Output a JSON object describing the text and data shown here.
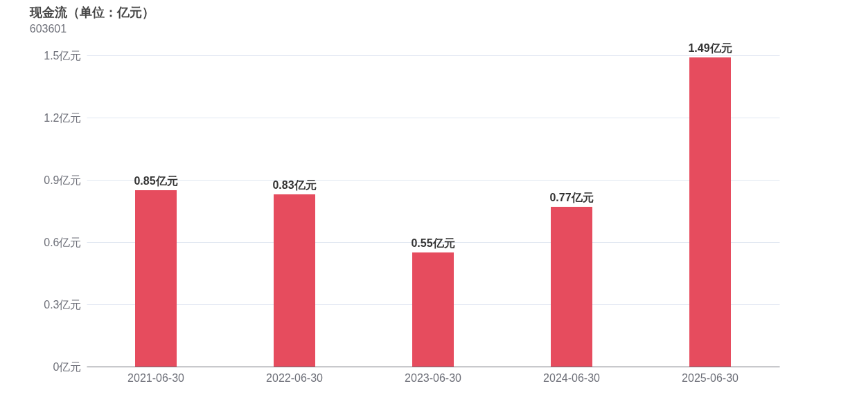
{
  "chart_data": {
    "type": "bar",
    "title": "现金流（单位：亿元）",
    "subtitle": "603601",
    "categories": [
      "2021-06-30",
      "2022-06-30",
      "2023-06-30",
      "2024-06-30",
      "2025-06-30"
    ],
    "values": [
      0.85,
      0.83,
      0.55,
      0.77,
      1.49
    ],
    "value_labels": [
      "0.85亿元",
      "0.83亿元",
      "0.55亿元",
      "0.77亿元",
      "1.49亿元"
    ],
    "color": "#e64c5e",
    "ylim": [
      0,
      1.5
    ],
    "yticks": [
      {
        "value": 0,
        "label": "0亿元"
      },
      {
        "value": 0.3,
        "label": "0.3亿元"
      },
      {
        "value": 0.6,
        "label": "0.6亿元"
      },
      {
        "value": 0.9,
        "label": "0.9亿元"
      },
      {
        "value": 1.2,
        "label": "1.2亿元"
      },
      {
        "value": 1.5,
        "label": "1.5亿元"
      }
    ],
    "grid": "y"
  }
}
